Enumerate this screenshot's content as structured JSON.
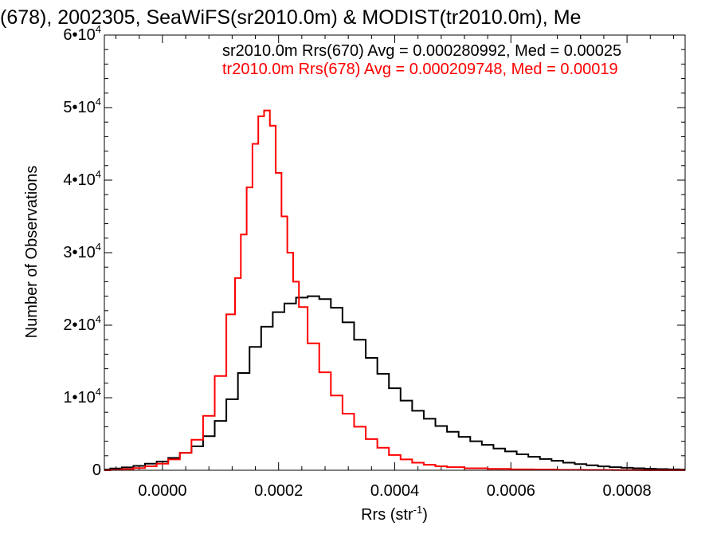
{
  "chart_data": {
    "type": "line",
    "title": "(678), 2002305, SeaWiFS(sr2010.0m) & MODIST(tr2010.0m), Me",
    "xlabel": "Rrs (str",
    "xlabel_sup": "-1",
    "xlabel_close": ")",
    "ylabel": "Number of Observations",
    "xlim": [
      -0.0001,
      0.0009
    ],
    "ylim": [
      0,
      60000
    ],
    "x_ticks": [
      {
        "value": 0.0,
        "label": "0.0000"
      },
      {
        "value": 0.0002,
        "label": "0.0002"
      },
      {
        "value": 0.0004,
        "label": "0.0004"
      },
      {
        "value": 0.0006,
        "label": "0.0006"
      },
      {
        "value": 0.0008,
        "label": "0.0008"
      }
    ],
    "y_ticks": [
      {
        "value": 0,
        "label": "0",
        "sup": ""
      },
      {
        "value": 10000,
        "label": "1•10",
        "sup": "4"
      },
      {
        "value": 20000,
        "label": "2•10",
        "sup": "4"
      },
      {
        "value": 30000,
        "label": "3•10",
        "sup": "4"
      },
      {
        "value": 40000,
        "label": "4•10",
        "sup": "4"
      },
      {
        "value": 50000,
        "label": "5•10",
        "sup": "4"
      },
      {
        "value": 60000,
        "label": "6•10",
        "sup": "4"
      }
    ],
    "legend_placement": "top",
    "series": [
      {
        "name": "sr2010.0m Rrs(670) Avg = 0.000280992, Med = 0.00025",
        "color": "#000000",
        "step": true,
        "x": [
          -0.0001,
          -8e-05,
          -6e-05,
          -4e-05,
          -2e-05,
          0.0,
          2e-05,
          4e-05,
          6e-05,
          8e-05,
          0.0001,
          0.00012,
          0.00014,
          0.00016,
          0.00018,
          0.0002,
          0.00022,
          0.00024,
          0.00026,
          0.00028,
          0.0003,
          0.00032,
          0.00034,
          0.00036,
          0.00038,
          0.0004,
          0.00042,
          0.00044,
          0.00046,
          0.00048,
          0.0005,
          0.00052,
          0.00054,
          0.00056,
          0.00058,
          0.0006,
          0.00062,
          0.00064,
          0.00066,
          0.00068,
          0.0007,
          0.00072,
          0.00074,
          0.00076,
          0.00078,
          0.0008,
          0.00082,
          0.00084,
          0.00086,
          0.00088,
          0.0009
        ],
        "y": [
          100,
          250,
          400,
          600,
          900,
          1200,
          1700,
          2400,
          3300,
          4700,
          6800,
          9800,
          13400,
          17000,
          19800,
          21800,
          23000,
          23800,
          24000,
          23600,
          22400,
          20400,
          18000,
          15500,
          13300,
          11300,
          9600,
          8200,
          7100,
          6100,
          5300,
          4600,
          4000,
          3500,
          3000,
          2600,
          2200,
          1850,
          1550,
          1300,
          1050,
          850,
          680,
          540,
          430,
          340,
          270,
          210,
          170,
          130,
          100
        ]
      },
      {
        "name": "tr2010.0m Rrs(678) Avg = 0.000209748, Med = 0.00019",
        "color": "#ff0000",
        "step": true,
        "x": [
          -0.0001,
          -8e-05,
          -6e-05,
          -4e-05,
          -2e-05,
          0.0,
          2e-05,
          4e-05,
          6e-05,
          8e-05,
          0.0001,
          0.00012,
          0.00013,
          0.00014,
          0.00015,
          0.00016,
          0.00017,
          0.00018,
          0.00019,
          0.0002,
          0.00021,
          0.00022,
          0.00023,
          0.00024,
          0.00026,
          0.00028,
          0.0003,
          0.00032,
          0.00034,
          0.00036,
          0.00038,
          0.0004,
          0.00042,
          0.00044,
          0.00046,
          0.00048,
          0.0005,
          0.00054,
          0.00058,
          0.00062,
          0.00066,
          0.0007,
          0.00075,
          0.0008,
          0.00085,
          0.0009
        ],
        "y": [
          0,
          60,
          150,
          300,
          550,
          900,
          1500,
          2400,
          4200,
          7500,
          13000,
          21500,
          26500,
          32500,
          39000,
          45000,
          48800,
          49600,
          47500,
          41000,
          35000,
          30000,
          26000,
          22500,
          17500,
          13500,
          10300,
          7800,
          6000,
          4300,
          3100,
          2100,
          1500,
          1050,
          750,
          550,
          420,
          280,
          190,
          130,
          90,
          60,
          40,
          25,
          15,
          10
        ]
      }
    ]
  }
}
